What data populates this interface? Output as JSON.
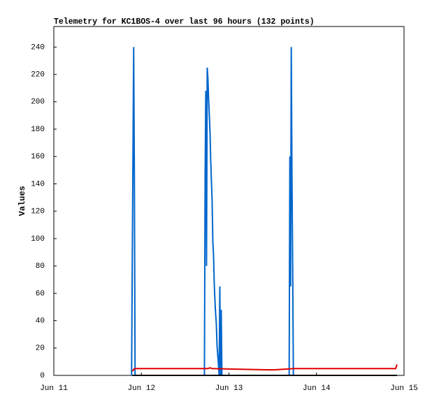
{
  "chart_data": {
    "type": "line",
    "title": "Telemetry for KC1BOS-4 over last 96 hours (132 points)",
    "y_label": "Values",
    "xlim": [
      0,
      4
    ],
    "xticks": [
      {
        "value": 0,
        "label": "Jun 11"
      },
      {
        "value": 1,
        "label": "Jun 12"
      },
      {
        "value": 2,
        "label": "Jun 13"
      },
      {
        "value": 3,
        "label": "Jun 14"
      },
      {
        "value": 4,
        "label": "Jun 15"
      }
    ],
    "ylim": [
      0,
      255
    ],
    "yticks": [
      0,
      20,
      40,
      60,
      80,
      100,
      120,
      140,
      160,
      180,
      200,
      220,
      240
    ],
    "grid": false,
    "series": [
      {
        "color": "#0066cc",
        "x": [
          0.888,
          0.912,
          0.92,
          0.928,
          1.72,
          1.728,
          1.736,
          1.744,
          1.752,
          1.76,
          1.768,
          1.784,
          1.792,
          1.8,
          1.808,
          1.816,
          1.824,
          1.832,
          1.84,
          1.848,
          1.856,
          1.864,
          1.88,
          1.888,
          1.896,
          1.904,
          1.912,
          1.92,
          2.688,
          2.696,
          2.704,
          2.712,
          2.72,
          2.728,
          2.736,
          3.92
        ],
        "values": [
          0,
          240,
          145,
          0,
          0,
          145,
          208,
          80,
          225,
          217,
          202,
          178,
          157,
          142,
          128,
          98,
          88,
          68,
          55,
          45,
          38,
          22,
          8,
          0,
          65,
          0,
          48,
          0,
          0,
          160,
          65,
          240,
          145,
          80,
          0,
          0
        ]
      },
      {
        "color": "#e00000",
        "x": [
          0.896,
          0.92,
          1.76,
          1.784,
          1.808,
          2.104,
          2.504,
          2.744,
          3.904,
          3.92
        ],
        "values": [
          3,
          5,
          5,
          5.5,
          5,
          4.5,
          4,
          5,
          5,
          8
        ]
      },
      {
        "color": "#000000",
        "x": [
          0.896,
          3.92
        ],
        "values": [
          0,
          0
        ]
      }
    ]
  }
}
